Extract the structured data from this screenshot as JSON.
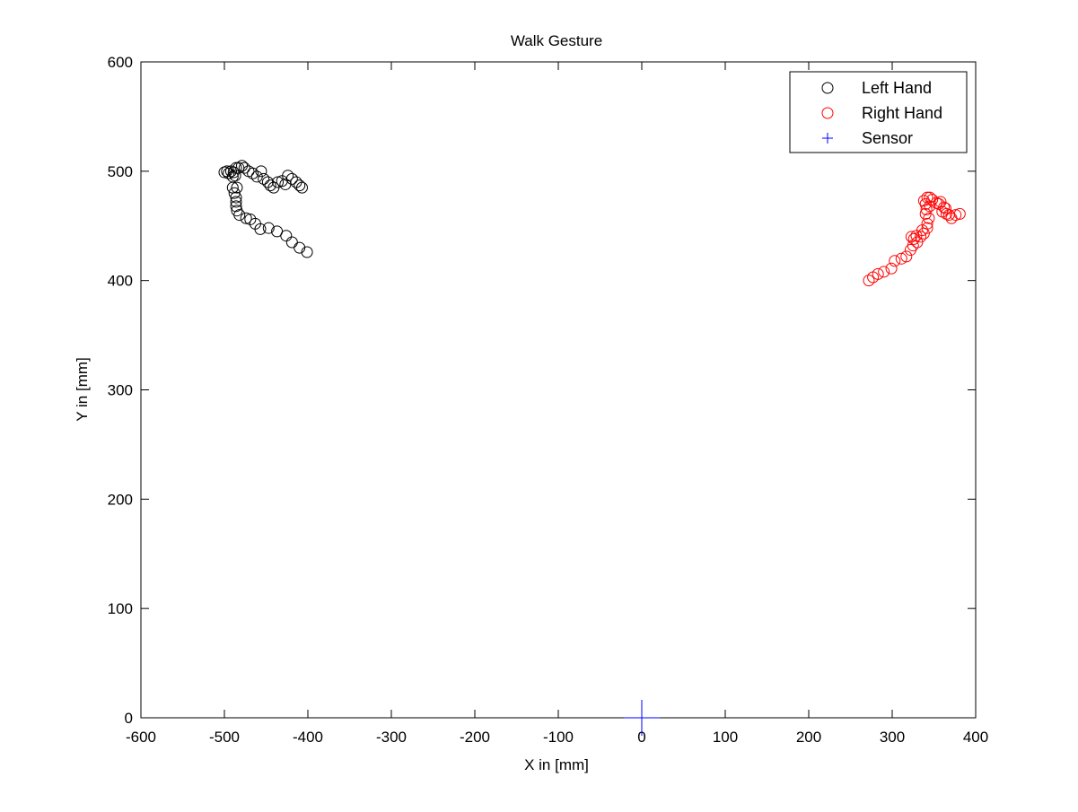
{
  "chart_data": {
    "type": "scatter",
    "title": "Walk Gesture",
    "xlabel": "X in [mm]",
    "ylabel": "Y in [mm]",
    "xlim": [
      -600,
      400
    ],
    "ylim": [
      0,
      600
    ],
    "xticks": [
      -600,
      -500,
      -400,
      -300,
      -200,
      -100,
      0,
      100,
      200,
      300,
      400
    ],
    "yticks": [
      0,
      100,
      200,
      300,
      400,
      500,
      600
    ],
    "grid": false,
    "legend_position": "top-right",
    "series": [
      {
        "name": "Left Hand",
        "marker": "circle",
        "color": "#000000",
        "points": [
          [
            -500,
            499
          ],
          [
            -497,
            500
          ],
          [
            -495,
            498
          ],
          [
            -492,
            500
          ],
          [
            -489,
            499
          ],
          [
            -486,
            503
          ],
          [
            -490,
            495
          ],
          [
            -487,
            496
          ],
          [
            -483,
            503
          ],
          [
            -479,
            505
          ],
          [
            -476,
            503
          ],
          [
            -471,
            500
          ],
          [
            -466,
            498
          ],
          [
            -461,
            495
          ],
          [
            -456,
            500
          ],
          [
            -453,
            493
          ],
          [
            -448,
            490
          ],
          [
            -445,
            487
          ],
          [
            -441,
            485
          ],
          [
            -436,
            490
          ],
          [
            -431,
            491
          ],
          [
            -427,
            488
          ],
          [
            -424,
            496
          ],
          [
            -419,
            493
          ],
          [
            -414,
            490
          ],
          [
            -410,
            487
          ],
          [
            -407,
            485
          ],
          [
            -490,
            485
          ],
          [
            -488,
            480
          ],
          [
            -485,
            485
          ],
          [
            -486,
            476
          ],
          [
            -486,
            472
          ],
          [
            -486,
            468
          ],
          [
            -485,
            464
          ],
          [
            -482,
            460
          ],
          [
            -474,
            457
          ],
          [
            -469,
            456
          ],
          [
            -463,
            452
          ],
          [
            -457,
            447
          ],
          [
            -447,
            448
          ],
          [
            -437,
            445
          ],
          [
            -426,
            441
          ],
          [
            -419,
            435
          ],
          [
            -410,
            430
          ],
          [
            -401,
            426
          ]
        ]
      },
      {
        "name": "Right Hand",
        "marker": "circle",
        "color": "#ff0000",
        "points": [
          [
            272,
            400
          ],
          [
            277,
            403
          ],
          [
            283,
            406
          ],
          [
            290,
            408
          ],
          [
            299,
            411
          ],
          [
            303,
            418
          ],
          [
            311,
            420
          ],
          [
            317,
            422
          ],
          [
            322,
            428
          ],
          [
            325,
            432
          ],
          [
            326,
            438
          ],
          [
            323,
            440
          ],
          [
            329,
            441
          ],
          [
            330,
            435
          ],
          [
            334,
            440
          ],
          [
            338,
            443
          ],
          [
            336,
            446
          ],
          [
            342,
            448
          ],
          [
            342,
            452
          ],
          [
            344,
            457
          ],
          [
            340,
            461
          ],
          [
            341,
            465
          ],
          [
            345,
            468
          ],
          [
            340,
            470
          ],
          [
            338,
            473
          ],
          [
            342,
            476
          ],
          [
            345,
            476
          ],
          [
            348,
            474
          ],
          [
            353,
            471
          ],
          [
            358,
            472
          ],
          [
            362,
            467
          ],
          [
            360,
            463
          ],
          [
            365,
            461
          ],
          [
            368,
            460
          ],
          [
            371,
            457
          ],
          [
            376,
            460
          ],
          [
            381,
            461
          ],
          [
            356,
            470
          ],
          [
            364,
            466
          ]
        ]
      },
      {
        "name": "Sensor",
        "marker": "plus",
        "color": "#0000ff",
        "points": [
          [
            0,
            0
          ]
        ]
      }
    ]
  }
}
